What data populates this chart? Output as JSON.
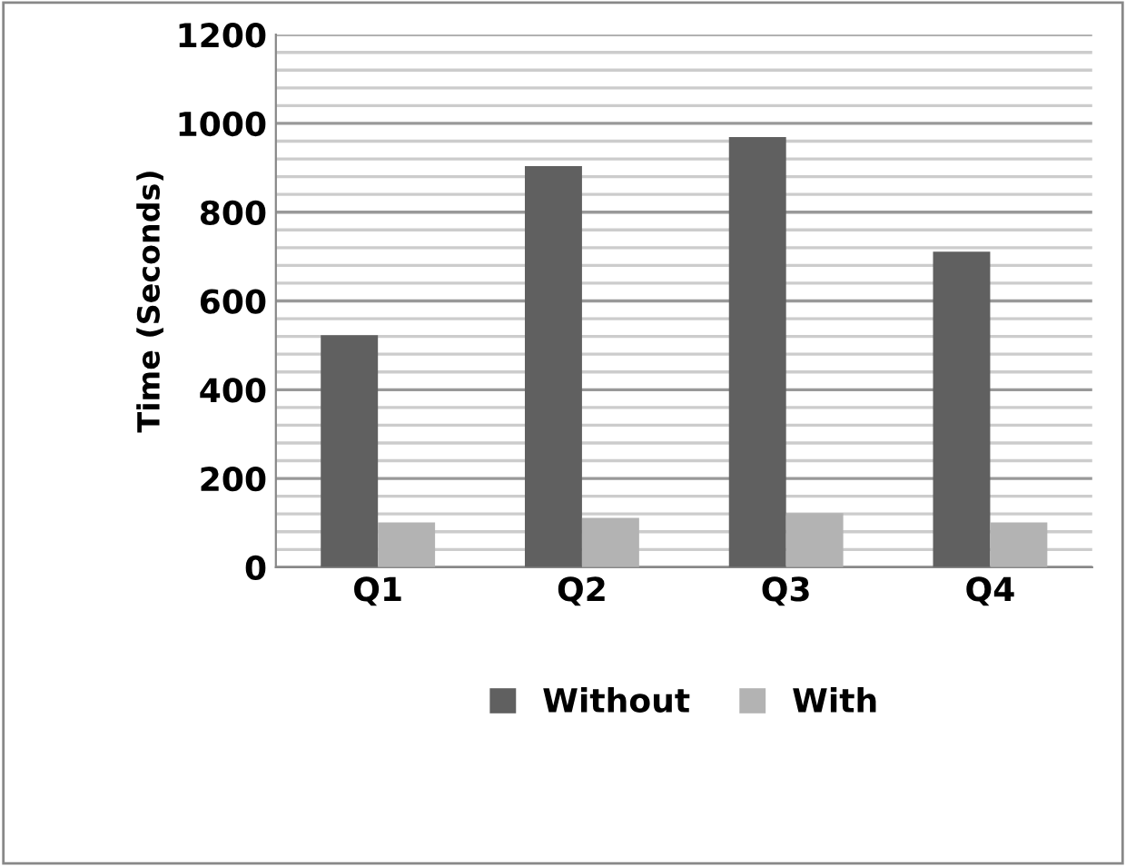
{
  "chart_data": {
    "type": "bar",
    "ylabel": "Time (Seconds)",
    "categories": [
      "Q1",
      "Q2",
      "Q3",
      "Q4"
    ],
    "series": [
      {
        "name": "Without",
        "color": "#606060",
        "values": [
          523,
          904,
          969,
          711
        ]
      },
      {
        "name": "With",
        "color": "#b3b3b3",
        "values": [
          101,
          111,
          122,
          101
        ]
      }
    ],
    "ylim": [
      0,
      1200
    ],
    "yticks": [
      0,
      200,
      400,
      600,
      800,
      1000,
      1200
    ],
    "grid": "y",
    "legend": "bottom"
  }
}
